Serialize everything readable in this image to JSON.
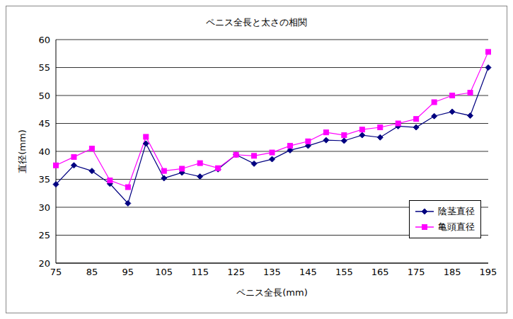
{
  "chart_data": {
    "type": "line",
    "title": "ペニス全長と太さの相関",
    "x_label": "ペニス全長(mm)",
    "y_label": "直径(mm)",
    "categories": [
      "75",
      null,
      "85",
      null,
      "95",
      null,
      "105",
      null,
      "115",
      null,
      "125",
      null,
      "135",
      null,
      "145",
      null,
      "155",
      null,
      "165",
      null,
      "175",
      null,
      "185",
      null,
      "195"
    ],
    "series": [
      {
        "name": "陰茎直径",
        "color": "#000080",
        "marker": "diamond",
        "values": [
          34.1,
          37.5,
          36.5,
          34.2,
          30.7,
          41.4,
          35.2,
          36.2,
          35.5,
          36.8,
          39.4,
          37.8,
          38.6,
          40.2,
          41.0,
          42.0,
          41.9,
          42.9,
          42.5,
          44.5,
          44.3,
          46.3,
          47.1,
          46.4,
          55.0
        ]
      },
      {
        "name": "亀頭直径",
        "color": "#ff00ff",
        "marker": "square",
        "values": [
          37.5,
          39.0,
          40.5,
          34.8,
          33.6,
          42.6,
          36.5,
          36.9,
          37.9,
          37.0,
          39.4,
          39.2,
          39.8,
          41.0,
          41.8,
          43.4,
          42.9,
          43.9,
          44.3,
          45.0,
          45.8,
          48.8,
          50.0,
          50.5,
          57.8
        ]
      }
    ],
    "ylim": [
      20,
      60
    ],
    "yticks": [
      20,
      25,
      30,
      35,
      40,
      45,
      50,
      55,
      60
    ],
    "grid": true,
    "legend": "lower right"
  }
}
